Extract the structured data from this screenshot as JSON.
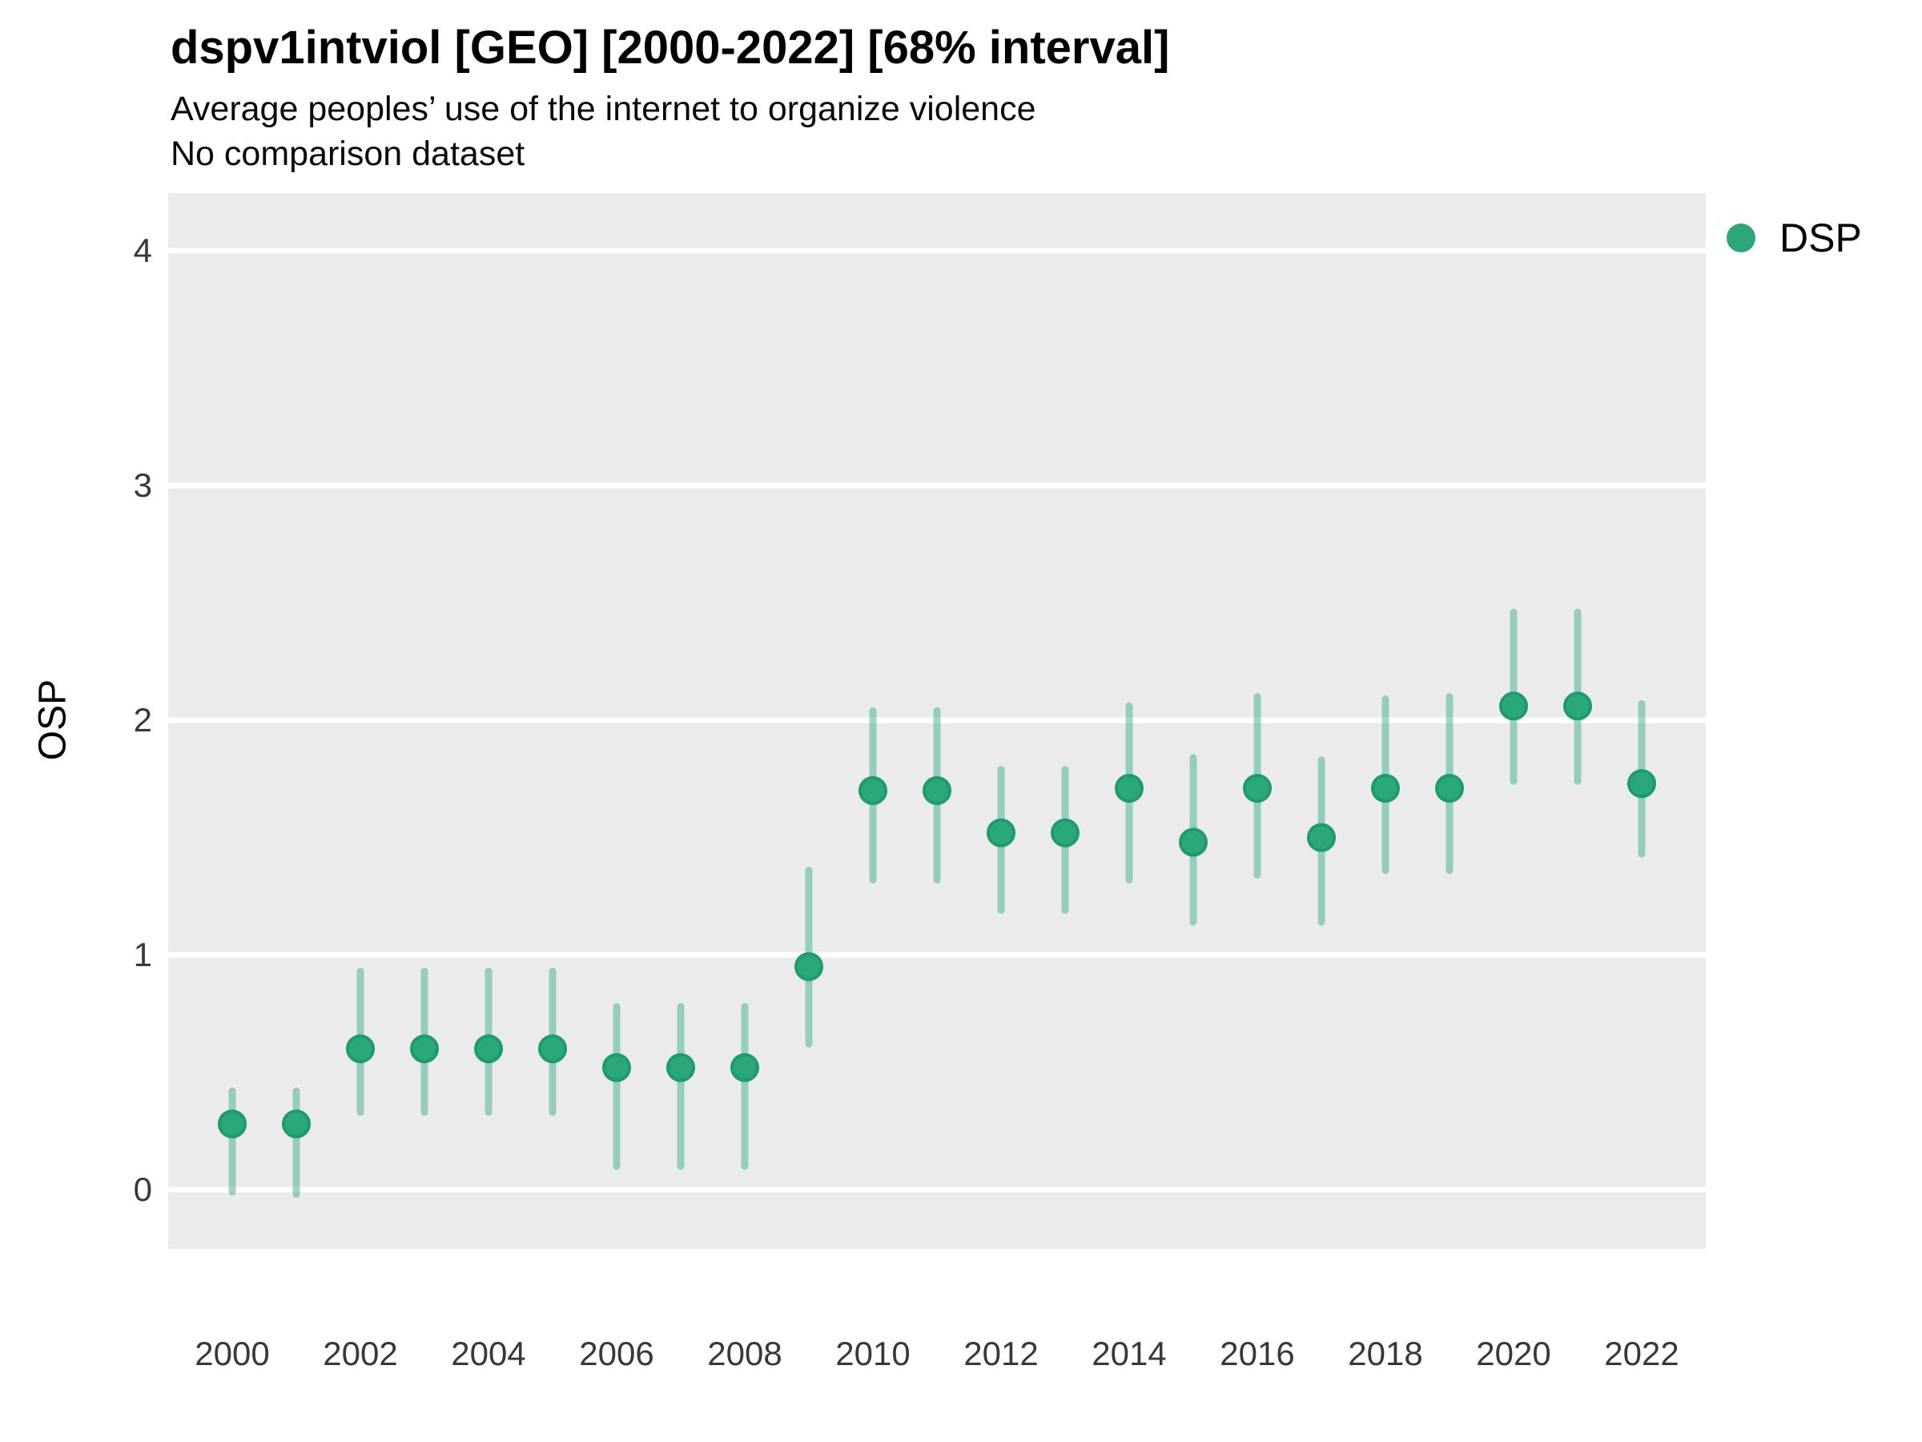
{
  "header": {
    "title": "dspv1intviol [GEO] [2000-2022] [68% interval]",
    "subtitle": "Average peoples’ use of the internet to organize violence",
    "note": "No comparison dataset"
  },
  "legend": {
    "label": "DSP",
    "position": "right"
  },
  "axes": {
    "y_title": "OSP",
    "y_ticks": [
      0,
      1,
      2,
      3,
      4
    ],
    "x_ticks": [
      2000,
      2002,
      2004,
      2006,
      2008,
      2010,
      2012,
      2014,
      2016,
      2018,
      2020,
      2022
    ]
  },
  "colors": {
    "panel_background": "#ebebeb",
    "gridline": "#ffffff",
    "point_fill": "#2aa87a",
    "point_stroke": "#1d9b6c",
    "interval_line": "rgba(42,168,122,0.45)",
    "text": "#000000",
    "tick_text": "#383838"
  },
  "chart_data": {
    "type": "scatter",
    "title": "dspv1intviol [GEO] [2000-2022] [68% interval]",
    "subtitle": "Average peoples’ use of the internet to organize violence",
    "note": "No comparison dataset",
    "xlabel": "",
    "ylabel": "OSP",
    "ylim": [
      -0.25,
      4.25
    ],
    "grid": "horizontal major gridlines, white on gray panel",
    "legend_position": "right",
    "interval_level": "68%",
    "x": [
      2000,
      2001,
      2002,
      2003,
      2004,
      2005,
      2006,
      2007,
      2008,
      2009,
      2010,
      2011,
      2012,
      2013,
      2014,
      2015,
      2016,
      2017,
      2018,
      2019,
      2020,
      2021,
      2022
    ],
    "series": [
      {
        "name": "DSP",
        "values": [
          0.28,
          0.28,
          0.6,
          0.6,
          0.6,
          0.6,
          0.52,
          0.52,
          0.52,
          0.95,
          1.7,
          1.7,
          1.52,
          1.52,
          1.71,
          1.48,
          1.71,
          1.5,
          1.71,
          1.71,
          2.06,
          2.06,
          1.73
        ],
        "interval_low": [
          -0.01,
          -0.02,
          0.33,
          0.33,
          0.33,
          0.33,
          0.1,
          0.1,
          0.1,
          0.62,
          1.32,
          1.32,
          1.19,
          1.19,
          1.32,
          1.14,
          1.34,
          1.14,
          1.36,
          1.36,
          1.74,
          1.74,
          1.43
        ],
        "interval_high": [
          0.42,
          0.42,
          0.93,
          0.93,
          0.93,
          0.93,
          0.78,
          0.78,
          0.78,
          1.36,
          2.04,
          2.04,
          1.79,
          1.79,
          2.06,
          1.84,
          2.1,
          1.83,
          2.09,
          2.1,
          2.46,
          2.46,
          2.07
        ]
      }
    ]
  }
}
